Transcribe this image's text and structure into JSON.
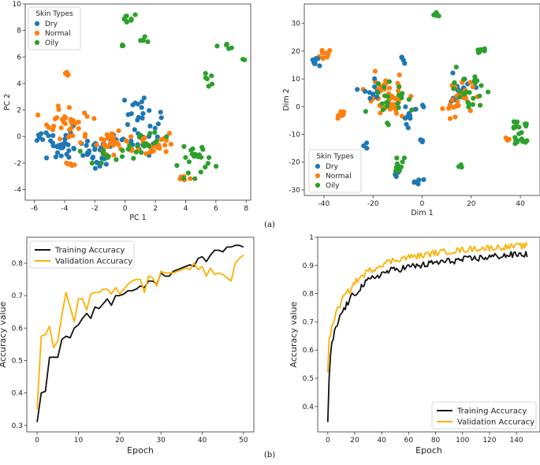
{
  "captions": {
    "a": "(a)",
    "b": "(b)"
  },
  "colors": {
    "dry": "#1f77b4",
    "normal": "#ff7f0e",
    "oily": "#2ca02c",
    "train": "#111111",
    "val": "#ffb000"
  },
  "chart_data": [
    {
      "id": "pca",
      "type": "scatter",
      "xlabel": "PC 1",
      "ylabel": "PC 2",
      "xlim": [
        -6.6,
        8.3
      ],
      "ylim": [
        -4.8,
        10
      ],
      "xticks": [
        -6,
        -4,
        -2,
        0,
        2,
        4,
        6,
        8
      ],
      "yticks": [
        -4,
        -2,
        0,
        2,
        4,
        6,
        8,
        10
      ],
      "legend": {
        "title": "Skin Types",
        "position": "top-left",
        "entries": [
          "Dry",
          "Normal",
          "Oily"
        ]
      },
      "clusters": [
        {
          "series": "Dry",
          "cx": -4.2,
          "cy": -0.8,
          "sx": 1.3,
          "sy": 0.9,
          "n": 28
        },
        {
          "series": "Dry",
          "cx": -1.8,
          "cy": -1.4,
          "sx": 1.0,
          "sy": 1.0,
          "n": 28
        },
        {
          "series": "Dry",
          "cx": 1.0,
          "cy": 1.9,
          "sx": 1.0,
          "sy": 1.0,
          "n": 20
        },
        {
          "series": "Dry",
          "cx": 0.8,
          "cy": -0.5,
          "sx": 1.4,
          "sy": 0.8,
          "n": 20
        },
        {
          "series": "Dry",
          "cx": -5.7,
          "cy": 0.0,
          "sx": 0.3,
          "sy": 0.4,
          "n": 6
        },
        {
          "series": "Normal",
          "cx": -3.6,
          "cy": 1.0,
          "sx": 1.4,
          "sy": 1.1,
          "n": 34
        },
        {
          "series": "Normal",
          "cx": -0.6,
          "cy": -0.4,
          "sx": 1.2,
          "sy": 0.8,
          "n": 32
        },
        {
          "series": "Normal",
          "cx": 2.0,
          "cy": -0.6,
          "sx": 1.1,
          "sy": 0.7,
          "n": 24
        },
        {
          "series": "Normal",
          "cx": -3.8,
          "cy": 4.8,
          "sx": 0.15,
          "sy": 0.15,
          "n": 5
        },
        {
          "series": "Normal",
          "cx": -3.6,
          "cy": -2.1,
          "sx": 0.5,
          "sy": 0.3,
          "n": 6
        },
        {
          "series": "Normal",
          "cx": 3.9,
          "cy": -3.1,
          "sx": 0.4,
          "sy": 0.3,
          "n": 5
        },
        {
          "series": "Oily",
          "cx": 0.3,
          "cy": 8.9,
          "sx": 0.3,
          "sy": 0.4,
          "n": 8
        },
        {
          "series": "Oily",
          "cx": 1.2,
          "cy": 7.2,
          "sx": 0.25,
          "sy": 0.3,
          "n": 5
        },
        {
          "series": "Oily",
          "cx": -0.3,
          "cy": 6.8,
          "sx": 0.15,
          "sy": 0.15,
          "n": 3
        },
        {
          "series": "Oily",
          "cx": 6.5,
          "cy": 6.9,
          "sx": 0.5,
          "sy": 0.35,
          "n": 5
        },
        {
          "series": "Oily",
          "cx": 7.8,
          "cy": 5.9,
          "sx": 0.1,
          "sy": 0.1,
          "n": 2
        },
        {
          "series": "Oily",
          "cx": 5.4,
          "cy": 4.3,
          "sx": 0.3,
          "sy": 0.7,
          "n": 6
        },
        {
          "series": "Oily",
          "cx": 4.6,
          "cy": -1.9,
          "sx": 1.0,
          "sy": 1.3,
          "n": 22
        },
        {
          "series": "Oily",
          "cx": 1.3,
          "cy": -0.5,
          "sx": 1.2,
          "sy": 0.8,
          "n": 18
        },
        {
          "series": "Oily",
          "cx": -1.5,
          "cy": -1.6,
          "sx": 0.9,
          "sy": 0.5,
          "n": 10
        }
      ]
    },
    {
      "id": "tsne",
      "type": "scatter",
      "xlabel": "Dim 1",
      "ylabel": "Dim 2",
      "xlim": [
        -48,
        48
      ],
      "ylim": [
        -32,
        37
      ],
      "xticks": [
        -40,
        -20,
        0,
        20,
        40
      ],
      "yticks": [
        -30,
        -20,
        -10,
        0,
        10,
        20,
        30
      ],
      "legend": {
        "title": "Skin Types",
        "position": "bottom-left",
        "entries": [
          "Dry",
          "Normal",
          "Oily"
        ]
      },
      "clusters": [
        {
          "series": "Normal",
          "cx": -40,
          "cy": 19,
          "sx": 2.0,
          "sy": 1.8,
          "n": 9
        },
        {
          "series": "Dry",
          "cx": -43,
          "cy": 16,
          "sx": 1.8,
          "sy": 2.0,
          "n": 7
        },
        {
          "series": "Normal",
          "cx": -33,
          "cy": -3,
          "sx": 1.6,
          "sy": 1.0,
          "n": 7
        },
        {
          "series": "Normal",
          "cx": -14,
          "cy": 3,
          "sx": 7.0,
          "sy": 6.0,
          "n": 55
        },
        {
          "series": "Dry",
          "cx": -19,
          "cy": 6,
          "sx": 5.0,
          "sy": 5.0,
          "n": 10
        },
        {
          "series": "Oily",
          "cx": -14,
          "cy": 3,
          "sx": 6.0,
          "sy": 6.0,
          "n": 22
        },
        {
          "series": "Dry",
          "cx": -6,
          "cy": -3,
          "sx": 2.5,
          "sy": 3.0,
          "n": 10
        },
        {
          "series": "Dry",
          "cx": -8,
          "cy": 17,
          "sx": 1.5,
          "sy": 1.5,
          "n": 4
        },
        {
          "series": "Dry",
          "cx": -23,
          "cy": -14,
          "sx": 1.0,
          "sy": 1.5,
          "n": 3
        },
        {
          "series": "Dry",
          "cx": -2,
          "cy": -27,
          "sx": 1.5,
          "sy": 1.2,
          "n": 6
        },
        {
          "series": "Dry",
          "cx": -11,
          "cy": -24,
          "sx": 2.0,
          "sy": 2.5,
          "n": 6
        },
        {
          "series": "Oily",
          "cx": -10,
          "cy": -22,
          "sx": 2.5,
          "sy": 3.5,
          "n": 9
        },
        {
          "series": "Dry",
          "cx": 0,
          "cy": -12,
          "sx": 1.5,
          "sy": 0.8,
          "n": 4
        },
        {
          "series": "Oily",
          "cx": 6,
          "cy": 33,
          "sx": 1.0,
          "sy": 0.5,
          "n": 7
        },
        {
          "series": "Oily",
          "cx": 24,
          "cy": 20,
          "sx": 2.5,
          "sy": 0.8,
          "n": 8
        },
        {
          "series": "Dry",
          "cx": 15,
          "cy": 6,
          "sx": 4.5,
          "sy": 4.5,
          "n": 22
        },
        {
          "series": "Normal",
          "cx": 15,
          "cy": 3,
          "sx": 5.0,
          "sy": 5.0,
          "n": 28
        },
        {
          "series": "Oily",
          "cx": 19,
          "cy": 5,
          "sx": 5.0,
          "sy": 7.0,
          "n": 22
        },
        {
          "series": "Oily",
          "cx": 16,
          "cy": -21,
          "sx": 1.5,
          "sy": 1.0,
          "n": 3
        },
        {
          "series": "Oily",
          "cx": 40,
          "cy": -7,
          "sx": 3.0,
          "sy": 3.5,
          "n": 14
        },
        {
          "series": "Normal",
          "cx": 35,
          "cy": -12,
          "sx": 1.0,
          "sy": 0.8,
          "n": 3
        },
        {
          "series": "Oily",
          "cx": 40,
          "cy": -12,
          "sx": 2.5,
          "sy": 0.8,
          "n": 8
        },
        {
          "series": "Dry",
          "cx": 0,
          "cy": 0,
          "sx": 0.8,
          "sy": 0.8,
          "n": 2
        }
      ]
    },
    {
      "id": "acc50",
      "type": "line",
      "xlabel": "Epoch",
      "ylabel": "Accuracy value",
      "xlim": [
        -2.5,
        52.5
      ],
      "ylim": [
        0.28,
        0.88
      ],
      "xticks": [
        0,
        10,
        20,
        30,
        40,
        50
      ],
      "yticks": [
        0.3,
        0.4,
        0.5,
        0.6,
        0.7,
        0.8
      ],
      "legend": {
        "position": "top-left",
        "entries": [
          "Training Accuracy",
          "Validation Accuracy"
        ]
      },
      "series": [
        {
          "name": "Training Accuracy",
          "values": [
            0.31,
            0.4,
            0.405,
            0.51,
            0.51,
            0.51,
            0.565,
            0.575,
            0.57,
            0.6,
            0.61,
            0.63,
            0.645,
            0.63,
            0.665,
            0.66,
            0.675,
            0.69,
            0.67,
            0.7,
            0.7,
            0.705,
            0.715,
            0.715,
            0.72,
            0.73,
            0.725,
            0.745,
            0.745,
            0.735,
            0.77,
            0.76,
            0.76,
            0.775,
            0.78,
            0.785,
            0.79,
            0.795,
            0.79,
            0.815,
            0.82,
            0.805,
            0.825,
            0.84,
            0.84,
            0.835,
            0.85,
            0.85,
            0.855,
            0.855,
            0.85
          ]
        },
        {
          "name": "Validation Accuracy",
          "values": [
            0.35,
            0.575,
            0.58,
            0.605,
            0.54,
            0.56,
            0.64,
            0.71,
            0.665,
            0.62,
            0.69,
            0.69,
            0.655,
            0.705,
            0.71,
            0.71,
            0.72,
            0.72,
            0.705,
            0.725,
            0.705,
            0.72,
            0.735,
            0.745,
            0.75,
            0.75,
            0.71,
            0.76,
            0.755,
            0.73,
            0.775,
            0.77,
            0.77,
            0.77,
            0.775,
            0.78,
            0.785,
            0.78,
            0.8,
            0.78,
            0.79,
            0.76,
            0.785,
            0.765,
            0.77,
            0.765,
            0.755,
            0.745,
            0.8,
            0.815,
            0.825
          ]
        }
      ]
    },
    {
      "id": "acc150",
      "type": "line",
      "xlabel": "Epoch",
      "ylabel": "Accuracy value",
      "xlim": [
        -7.5,
        157.5
      ],
      "ylim": [
        0.31,
        1.0
      ],
      "xticks": [
        0,
        20,
        40,
        60,
        80,
        100,
        120,
        140
      ],
      "yticks": [
        0.4,
        0.5,
        0.6,
        0.7,
        0.8,
        0.9,
        1.0
      ],
      "legend": {
        "position": "bottom-right",
        "entries": [
          "Training Accuracy",
          "Validation Accuracy"
        ]
      },
      "series": [
        {
          "name": "Training Accuracy",
          "anchors": [
            [
              0,
              0.345
            ],
            [
              1,
              0.5
            ],
            [
              2,
              0.58
            ],
            [
              3,
              0.62
            ],
            [
              5,
              0.66
            ],
            [
              7,
              0.69
            ],
            [
              10,
              0.73
            ],
            [
              14,
              0.76
            ],
            [
              18,
              0.79
            ],
            [
              22,
              0.81
            ],
            [
              26,
              0.83
            ],
            [
              30,
              0.845
            ],
            [
              35,
              0.86
            ],
            [
              40,
              0.87
            ],
            [
              45,
              0.88
            ],
            [
              50,
              0.885
            ],
            [
              60,
              0.895
            ],
            [
              70,
              0.9
            ],
            [
              80,
              0.91
            ],
            [
              90,
              0.915
            ],
            [
              100,
              0.92
            ],
            [
              110,
              0.925
            ],
            [
              120,
              0.93
            ],
            [
              130,
              0.935
            ],
            [
              140,
              0.938
            ],
            [
              148,
              0.94
            ]
          ],
          "noise": 0.012
        },
        {
          "name": "Validation Accuracy",
          "anchors": [
            [
              0,
              0.52
            ],
            [
              1,
              0.64
            ],
            [
              2,
              0.65
            ],
            [
              4,
              0.7
            ],
            [
              6,
              0.73
            ],
            [
              9,
              0.76
            ],
            [
              12,
              0.79
            ],
            [
              16,
              0.81
            ],
            [
              20,
              0.84
            ],
            [
              25,
              0.86
            ],
            [
              30,
              0.88
            ],
            [
              35,
              0.89
            ],
            [
              40,
              0.905
            ],
            [
              50,
              0.92
            ],
            [
              60,
              0.93
            ],
            [
              70,
              0.935
            ],
            [
              80,
              0.945
            ],
            [
              90,
              0.95
            ],
            [
              100,
              0.955
            ],
            [
              110,
              0.96
            ],
            [
              120,
              0.962
            ],
            [
              130,
              0.965
            ],
            [
              140,
              0.968
            ],
            [
              148,
              0.97
            ]
          ],
          "noise": 0.011
        }
      ]
    }
  ]
}
